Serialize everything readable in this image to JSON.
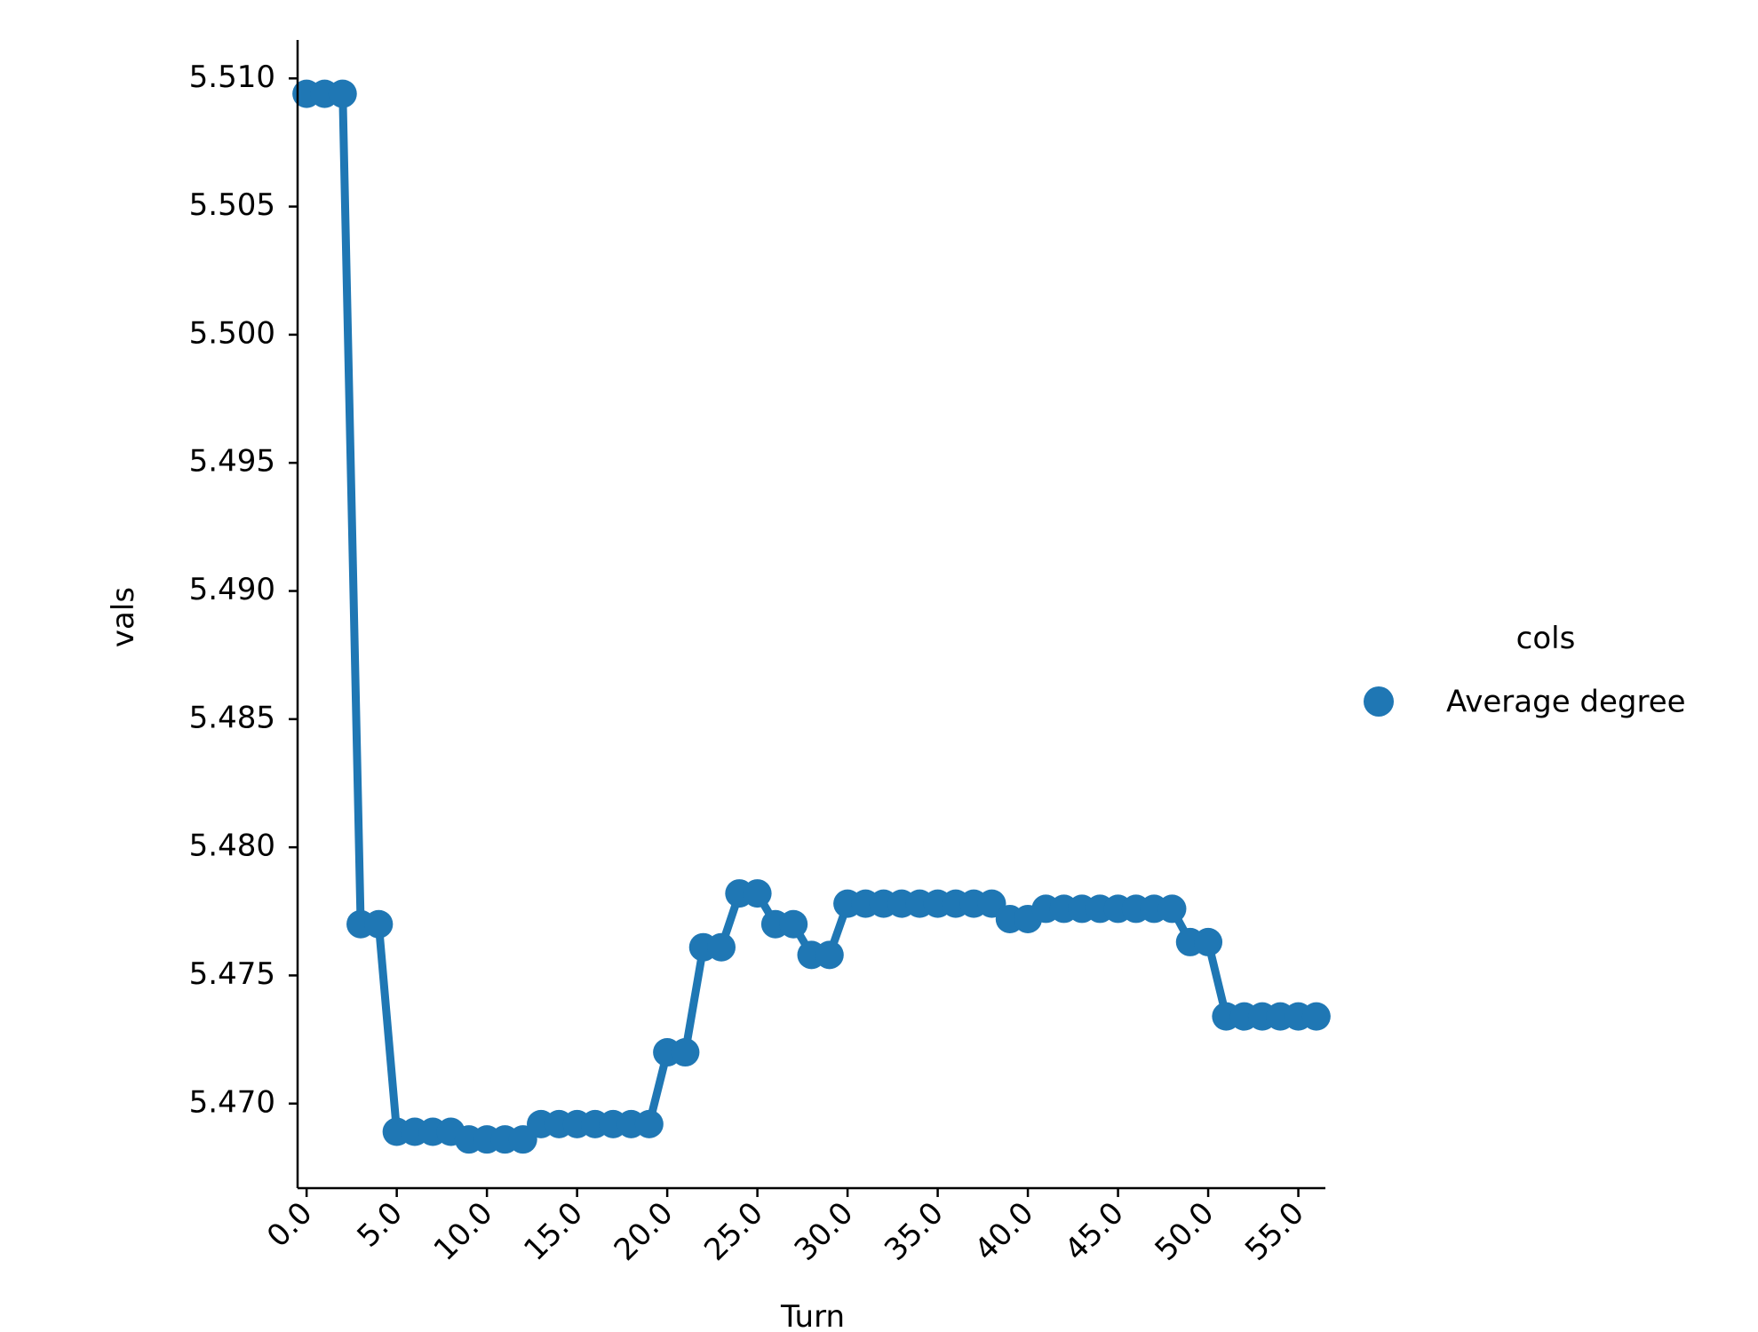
{
  "chart_data": {
    "type": "line",
    "xlabel": "Turn",
    "ylabel": "vals",
    "x_tick_labels": [
      "0.0",
      "5.0",
      "10.0",
      "15.0",
      "20.0",
      "25.0",
      "30.0",
      "35.0",
      "40.0",
      "45.0",
      "50.0",
      "55.0"
    ],
    "x_ticks": [
      0,
      5,
      10,
      15,
      20,
      25,
      30,
      35,
      40,
      45,
      50,
      55
    ],
    "y_tick_labels": [
      "5.470",
      "5.475",
      "5.480",
      "5.485",
      "5.490",
      "5.495",
      "5.500",
      "5.505",
      "5.510"
    ],
    "y_ticks": [
      5.47,
      5.475,
      5.48,
      5.485,
      5.49,
      5.495,
      5.5,
      5.505,
      5.51
    ],
    "xlim": [
      -0.5,
      56.5
    ],
    "ylim": [
      5.4667,
      5.5115
    ],
    "grid": false,
    "legend": {
      "title": "cols",
      "placement": "right",
      "entries": [
        "Average degree"
      ]
    },
    "series": [
      {
        "name": "Average degree",
        "color": "#1f77b4",
        "x": [
          0,
          1,
          2,
          3,
          4,
          5,
          6,
          7,
          8,
          9,
          10,
          11,
          12,
          13,
          14,
          15,
          16,
          17,
          18,
          19,
          20,
          21,
          22,
          23,
          24,
          25,
          26,
          27,
          28,
          29,
          30,
          31,
          32,
          33,
          34,
          35,
          36,
          37,
          38,
          39,
          40,
          41,
          42,
          43,
          44,
          45,
          46,
          47,
          48,
          49,
          50,
          51,
          52,
          53,
          54,
          55,
          56
        ],
        "values": [
          5.5094,
          5.5094,
          5.5094,
          5.477,
          5.477,
          5.4689,
          5.4689,
          5.4689,
          5.4689,
          5.4686,
          5.4686,
          5.4686,
          5.4686,
          5.4692,
          5.4692,
          5.4692,
          5.4692,
          5.4692,
          5.4692,
          5.4692,
          5.472,
          5.472,
          5.4761,
          5.4761,
          5.4782,
          5.4782,
          5.477,
          5.477,
          5.4758,
          5.4758,
          5.4778,
          5.4778,
          5.4778,
          5.4778,
          5.4778,
          5.4778,
          5.4778,
          5.4778,
          5.4778,
          5.4772,
          5.4772,
          5.4776,
          5.4776,
          5.4776,
          5.4776,
          5.4776,
          5.4776,
          5.4776,
          5.4776,
          5.4763,
          5.4763,
          5.4734,
          5.4734,
          5.4734,
          5.4734,
          5.4734,
          5.4734
        ]
      }
    ]
  }
}
